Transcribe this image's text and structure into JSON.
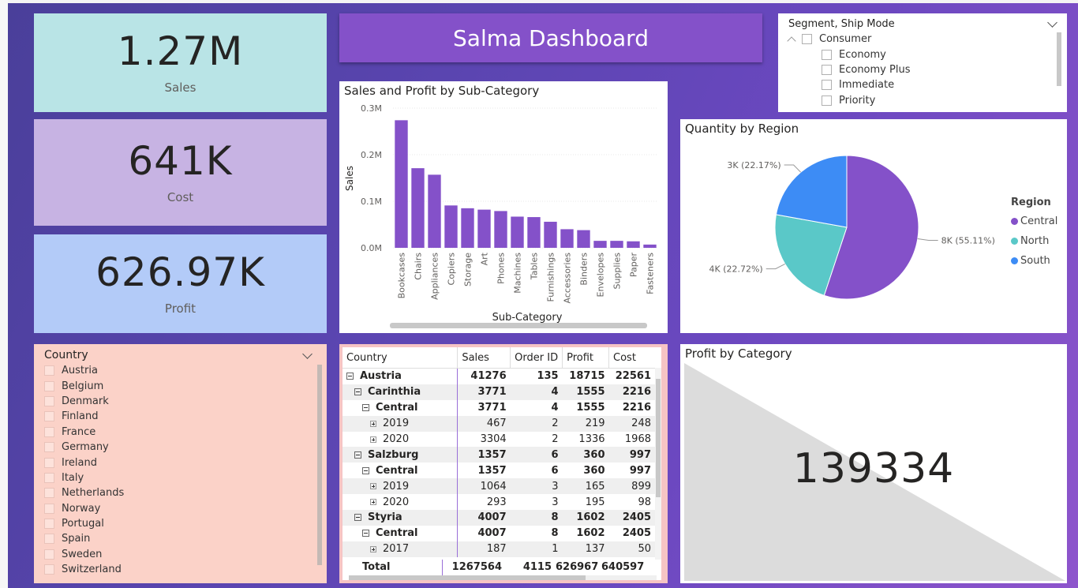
{
  "title": "Salma Dashboard",
  "kpis": {
    "sales": {
      "value": "1.27M",
      "label": "Sales"
    },
    "cost": {
      "value": "641K",
      "label": "Cost"
    },
    "profit": {
      "value": "626.97K",
      "label": "Profit"
    }
  },
  "segment_slicer": {
    "title": "Segment, Ship Mode",
    "group": "Consumer",
    "items": [
      "Economy",
      "Economy Plus",
      "Immediate",
      "Priority"
    ]
  },
  "country_slicer": {
    "title": "Country",
    "items": [
      "Austria",
      "Belgium",
      "Denmark",
      "Finland",
      "France",
      "Germany",
      "Ireland",
      "Italy",
      "Netherlands",
      "Norway",
      "Portugal",
      "Spain",
      "Sweden",
      "Switzerland"
    ]
  },
  "colors": {
    "accent": "#8451c9",
    "teal": "#5ac8c8",
    "blue": "#3d8cf5"
  },
  "bar_chart": {
    "chart_data": {
      "type": "bar",
      "title": "Sales and Profit by Sub-Category",
      "xlabel": "Sub-Category",
      "ylabel": "Sales",
      "ylim": [
        0,
        300000
      ],
      "yticks": [
        "0.0M",
        "0.1M",
        "0.2M",
        "0.3M"
      ],
      "categories": [
        "Bookcases",
        "Chairs",
        "Appliances",
        "Copiers",
        "Storage",
        "Art",
        "Phones",
        "Machines",
        "Tables",
        "Furnishings",
        "Accessories",
        "Binders",
        "Envelopes",
        "Supplies",
        "Paper",
        "Fasteners"
      ],
      "values": [
        274000,
        171000,
        157000,
        91000,
        85000,
        82000,
        79000,
        67000,
        66000,
        56000,
        40000,
        38000,
        15000,
        15000,
        14000,
        7000
      ]
    }
  },
  "pie_chart": {
    "chart_data": {
      "type": "pie",
      "title": "Quantity by Region",
      "legend_title": "Region",
      "legend_position": "right",
      "labels": [
        "Central",
        "North",
        "South"
      ],
      "values": [
        55.11,
        22.72,
        22.17
      ],
      "data_labels": [
        "8K (55.11%)",
        "4K (22.72%)",
        "3K (22.17%)"
      ],
      "colors": [
        "#8451c9",
        "#5ac8c8",
        "#3d8cf5"
      ]
    }
  },
  "matrix": {
    "headers": [
      "Country",
      "Sales",
      "Order ID",
      "Profit",
      "Cost"
    ],
    "rows": [
      {
        "label": "Austria",
        "level": 0,
        "icon": "minus",
        "bold": true,
        "sales": "41276",
        "orders": "135",
        "profit": "18715",
        "cost": "22561"
      },
      {
        "label": "Carinthia",
        "level": 1,
        "icon": "minus",
        "bold": true,
        "sales": "3771",
        "orders": "4",
        "profit": "1555",
        "cost": "2216"
      },
      {
        "label": "Central",
        "level": 2,
        "icon": "minus",
        "bold": true,
        "sales": "3771",
        "orders": "4",
        "profit": "1555",
        "cost": "2216"
      },
      {
        "label": "2019",
        "level": 3,
        "icon": "plus",
        "bold": false,
        "sales": "467",
        "orders": "2",
        "profit": "219",
        "cost": "248"
      },
      {
        "label": "2020",
        "level": 3,
        "icon": "plus",
        "bold": false,
        "sales": "3304",
        "orders": "2",
        "profit": "1336",
        "cost": "1968"
      },
      {
        "label": "Salzburg",
        "level": 1,
        "icon": "minus",
        "bold": true,
        "sales": "1357",
        "orders": "6",
        "profit": "360",
        "cost": "997"
      },
      {
        "label": "Central",
        "level": 2,
        "icon": "minus",
        "bold": true,
        "sales": "1357",
        "orders": "6",
        "profit": "360",
        "cost": "997"
      },
      {
        "label": "2019",
        "level": 3,
        "icon": "plus",
        "bold": false,
        "sales": "1064",
        "orders": "3",
        "profit": "165",
        "cost": "899"
      },
      {
        "label": "2020",
        "level": 3,
        "icon": "plus",
        "bold": false,
        "sales": "293",
        "orders": "3",
        "profit": "195",
        "cost": "98"
      },
      {
        "label": "Styria",
        "level": 1,
        "icon": "minus",
        "bold": true,
        "sales": "4007",
        "orders": "8",
        "profit": "1602",
        "cost": "2405"
      },
      {
        "label": "Central",
        "level": 2,
        "icon": "minus",
        "bold": true,
        "sales": "4007",
        "orders": "8",
        "profit": "1602",
        "cost": "2405"
      },
      {
        "label": "2017",
        "level": 3,
        "icon": "plus",
        "bold": false,
        "sales": "187",
        "orders": "1",
        "profit": "137",
        "cost": "50"
      }
    ],
    "total": {
      "label": "Total",
      "sales": "1267564",
      "orders": "4115",
      "profit": "626967",
      "cost": "640597"
    }
  },
  "profit_category": {
    "title": "Profit by Category",
    "value": "139334"
  }
}
